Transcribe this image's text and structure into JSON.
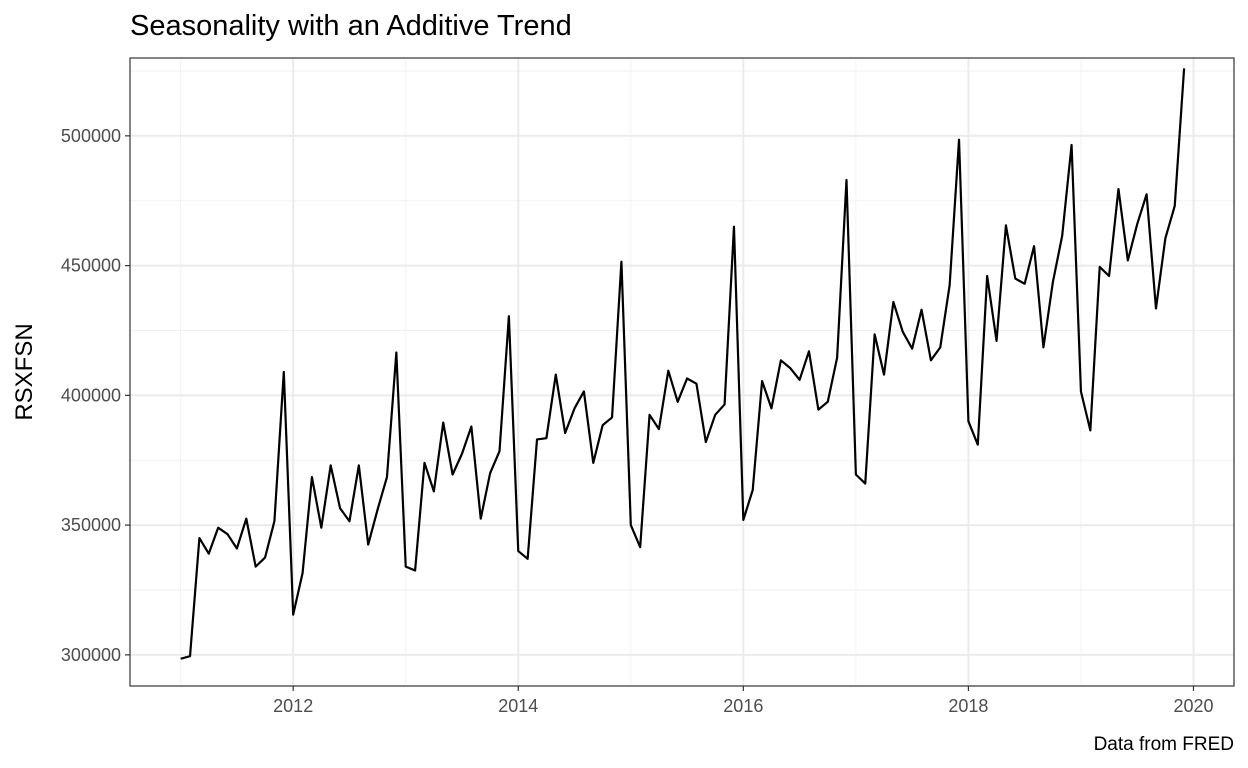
{
  "chart_data": {
    "type": "line",
    "title": "Seasonality with an Additive Trend",
    "xlabel": "",
    "ylabel": "RSXFSN",
    "caption": "Data from FRED",
    "xlim": [
      2010.55,
      2020.36
    ],
    "ylim": [
      288000,
      530000
    ],
    "x_ticks": [
      2012,
      2014,
      2016,
      2018,
      2020
    ],
    "x_tick_labels": [
      "2012",
      "2014",
      "2016",
      "2018",
      "2020"
    ],
    "y_ticks": [
      300000,
      350000,
      400000,
      450000,
      500000
    ],
    "y_tick_labels": [
      "300000",
      "350000",
      "400000",
      "450000",
      "500000"
    ],
    "grid": true,
    "legend": "none",
    "series": [
      {
        "color": "#000000",
        "x_start": "2011-01",
        "frequency": "monthly",
        "x": [
          "2011-01",
          "2011-02",
          "2011-03",
          "2011-04",
          "2011-05",
          "2011-06",
          "2011-07",
          "2011-08",
          "2011-09",
          "2011-10",
          "2011-11",
          "2011-12",
          "2012-01",
          "2012-02",
          "2012-03",
          "2012-04",
          "2012-05",
          "2012-06",
          "2012-07",
          "2012-08",
          "2012-09",
          "2012-10",
          "2012-11",
          "2012-12",
          "2013-01",
          "2013-02",
          "2013-03",
          "2013-04",
          "2013-05",
          "2013-06",
          "2013-07",
          "2013-08",
          "2013-09",
          "2013-10",
          "2013-11",
          "2013-12",
          "2014-01",
          "2014-02",
          "2014-03",
          "2014-04",
          "2014-05",
          "2014-06",
          "2014-07",
          "2014-08",
          "2014-09",
          "2014-10",
          "2014-11",
          "2014-12",
          "2015-01",
          "2015-02",
          "2015-03",
          "2015-04",
          "2015-05",
          "2015-06",
          "2015-07",
          "2015-08",
          "2015-09",
          "2015-10",
          "2015-11",
          "2015-12",
          "2016-01",
          "2016-02",
          "2016-03",
          "2016-04",
          "2016-05",
          "2016-06",
          "2016-07",
          "2016-08",
          "2016-09",
          "2016-10",
          "2016-11",
          "2016-12",
          "2017-01",
          "2017-02",
          "2017-03",
          "2017-04",
          "2017-05",
          "2017-06",
          "2017-07",
          "2017-08",
          "2017-09",
          "2017-10",
          "2017-11",
          "2017-12",
          "2018-01",
          "2018-02",
          "2018-03",
          "2018-04",
          "2018-05",
          "2018-06",
          "2018-07",
          "2018-08",
          "2018-09",
          "2018-10",
          "2018-11",
          "2018-12",
          "2019-01",
          "2019-02",
          "2019-03",
          "2019-04",
          "2019-05",
          "2019-06",
          "2019-07",
          "2019-08",
          "2019-09",
          "2019-10",
          "2019-11",
          "2019-12"
        ],
        "values": [
          298500,
          299500,
          345000,
          339000,
          349000,
          346500,
          341000,
          352500,
          334000,
          337500,
          351500,
          409000,
          315500,
          331500,
          368500,
          349000,
          373000,
          356500,
          351500,
          373000,
          342500,
          356000,
          368500,
          416500,
          334000,
          332500,
          374000,
          363000,
          389500,
          369500,
          377500,
          388000,
          352500,
          370000,
          378500,
          430500,
          340000,
          337000,
          383000,
          383500,
          408000,
          385500,
          395000,
          401500,
          374000,
          388500,
          391500,
          451500,
          350000,
          341500,
          392500,
          387000,
          409500,
          397500,
          406500,
          404500,
          382000,
          392500,
          396500,
          465000,
          352000,
          363500,
          405500,
          395000,
          413500,
          410500,
          406000,
          417000,
          394500,
          397500,
          414500,
          483000,
          369500,
          366000,
          423500,
          408000,
          436000,
          424500,
          418000,
          433000,
          413500,
          418500,
          442500,
          498500,
          390000,
          381000,
          446000,
          421000,
          465500,
          445000,
          443000,
          457500,
          418500,
          443500,
          461500,
          496500,
          401500,
          386500,
          449500,
          446000,
          479500,
          452000,
          466000,
          477500,
          433500,
          460500,
          473000,
          526000
        ]
      }
    ]
  }
}
